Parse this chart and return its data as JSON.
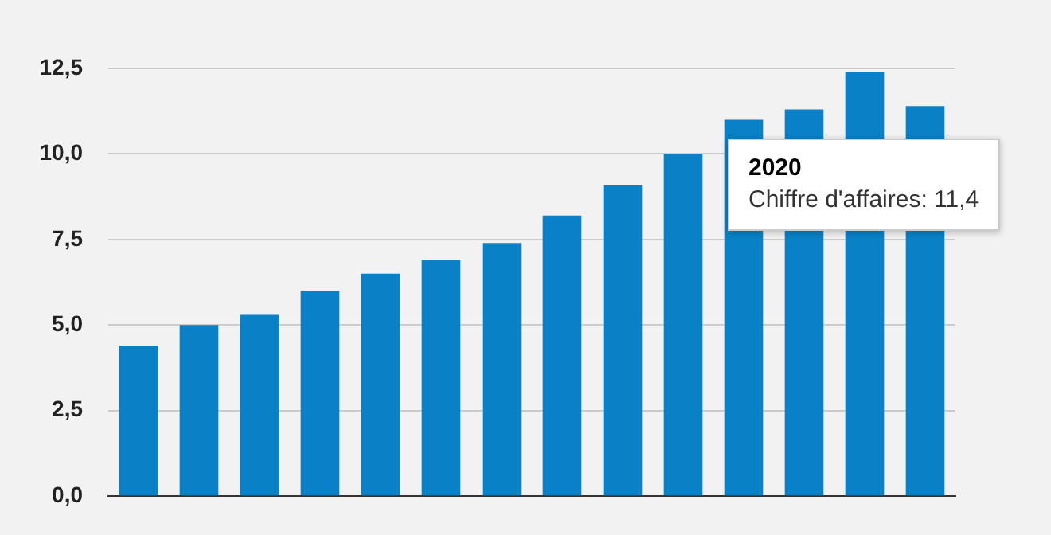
{
  "chart_data": {
    "type": "bar",
    "categories": [
      null,
      null,
      null,
      null,
      null,
      null,
      null,
      null,
      null,
      null,
      null,
      null,
      null,
      null
    ],
    "values": [
      4.4,
      5.0,
      5.3,
      6.0,
      6.5,
      6.9,
      7.4,
      8.2,
      9.1,
      10.0,
      11.0,
      11.3,
      12.4,
      11.4
    ],
    "color": "#0a80c6",
    "ylim": [
      0,
      12.5
    ],
    "yticks": [
      {
        "value": 0,
        "label": "0,0"
      },
      {
        "value": 2.5,
        "label": "2,5"
      },
      {
        "value": 5,
        "label": "5,0"
      },
      {
        "value": 7.5,
        "label": "7,5"
      },
      {
        "value": 10,
        "label": "10,0"
      },
      {
        "value": 12.5,
        "label": "12,5"
      }
    ],
    "grid": "y",
    "legend": false,
    "tick_labels": "y",
    "annotations": [
      "2020\nChiffre d'affaires: 11,4"
    ]
  }
}
